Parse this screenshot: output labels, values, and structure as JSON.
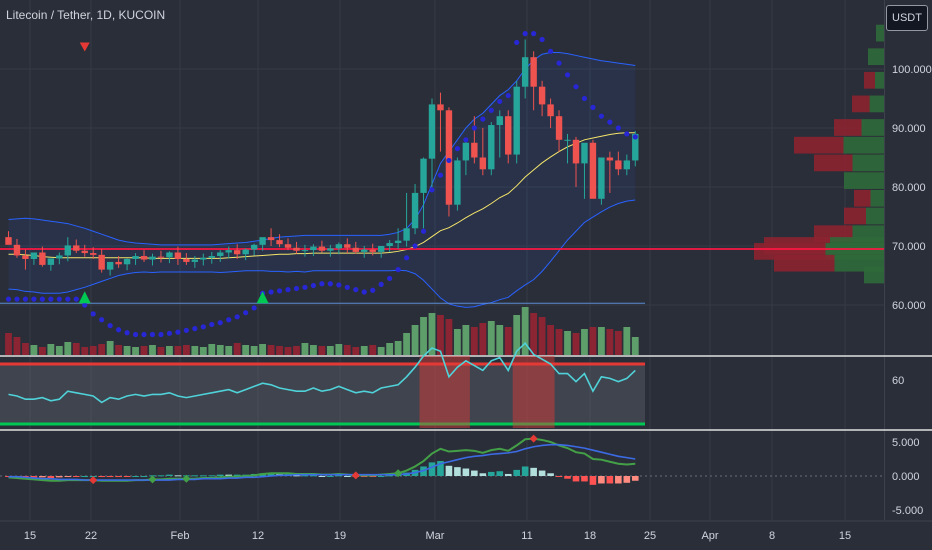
{
  "header": {
    "symbol_title": "Litecoin / Tether, 1D, KUCOIN",
    "currency_button": "USDT"
  },
  "colors": {
    "bg": "#2a2e39",
    "bull": "#26a69a",
    "bear": "#ef5350",
    "bb": "#2962ff",
    "sma": "#f5e56b",
    "psar": "#2727d6",
    "rsi": "#4fd2d8",
    "macd": "#3c6be6",
    "signal": "#e53935",
    "hist_pos": "#b2dfdb",
    "hist_neg": "#ff8a80",
    "hline_red": "#ff1744",
    "grid": "#363a45"
  },
  "chart_data": {
    "type": "candlestick",
    "price_axis": {
      "ticks": [
        60,
        70,
        80,
        90,
        100
      ],
      "tick_labels": [
        "60.000",
        "70.000",
        "80.000",
        "90.000",
        "100.000"
      ],
      "ylim": [
        52,
        108
      ]
    },
    "rsi_axis": {
      "tick_labels": [
        "60"
      ]
    },
    "macd_axis": {
      "ticks": [
        5,
        0,
        -5
      ],
      "tick_labels": [
        "5.000",
        "0.000",
        "-5.000"
      ],
      "ylim": [
        -6,
        6
      ]
    },
    "x_tick_labels": [
      "15",
      "22",
      "Feb",
      "12",
      "19",
      "Mar",
      "11",
      "18",
      "25",
      "Apr",
      "8",
      "15"
    ],
    "horizontal_level": 69.5,
    "candles": {
      "open": [
        71.5,
        70.2,
        68.4,
        67.8,
        68.9,
        66.8,
        67.9,
        68.4,
        70.1,
        69.2,
        68.8,
        68.5,
        66.0,
        67.3,
        66.9,
        67.8,
        68.3,
        67.7,
        68.2,
        68.1,
        68.9,
        67.8,
        67.3,
        67.7,
        68.0,
        68.3,
        68.9,
        69.3,
        68.6,
        69.4,
        70.2,
        71.5,
        71.0,
        70.3,
        69.7,
        69.2,
        69.3,
        69.9,
        69.2,
        69.6,
        70.3,
        69.7,
        69.0,
        69.4,
        69.0,
        70.0,
        70.5,
        70.9,
        73.0,
        79.0,
        84.8,
        94.0,
        93.0,
        77.0,
        84.5,
        87.5,
        85.0,
        83.0,
        90.5,
        92.0,
        85.5,
        97.0,
        102.0,
        97.0,
        94.0,
        92.0,
        88.0,
        88.0,
        84.0,
        87.5,
        78.0,
        85.0,
        84.5,
        83.0,
        84.5
      ],
      "high": [
        72.5,
        71.2,
        69.4,
        68.8,
        69.9,
        67.8,
        68.9,
        71.5,
        71.1,
        70.2,
        69.8,
        69.5,
        67.0,
        68.3,
        67.9,
        68.8,
        69.3,
        68.7,
        69.2,
        69.1,
        69.9,
        68.8,
        68.3,
        68.7,
        69.0,
        69.3,
        69.9,
        70.3,
        69.6,
        70.4,
        71.2,
        73.0,
        72.0,
        71.3,
        70.7,
        70.2,
        70.3,
        70.9,
        70.2,
        70.6,
        71.3,
        70.7,
        70.0,
        70.4,
        70.0,
        71.0,
        73.0,
        79.0,
        80.5,
        85.0,
        95.0,
        96.0,
        93.5,
        85.0,
        88.0,
        92.0,
        90.0,
        91.0,
        93.0,
        93.0,
        98.0,
        105.0,
        103.0,
        98.0,
        95.0,
        93.0,
        89.0,
        88.5,
        86.0,
        88.0,
        84.0,
        86.0,
        86.0,
        85.5,
        89.5
      ],
      "low": [
        70.5,
        68.0,
        66.0,
        66.8,
        66.5,
        65.8,
        66.9,
        67.4,
        68.8,
        68.2,
        67.8,
        65.5,
        65.0,
        66.3,
        65.9,
        66.8,
        67.3,
        66.7,
        67.2,
        67.1,
        66.8,
        66.8,
        66.3,
        66.7,
        67.0,
        67.3,
        67.9,
        67.8,
        67.6,
        68.4,
        69.2,
        70.0,
        69.8,
        69.3,
        68.7,
        68.2,
        68.3,
        68.9,
        68.2,
        68.6,
        68.8,
        68.7,
        68.0,
        68.4,
        68.0,
        69.0,
        69.5,
        69.9,
        72.0,
        73.0,
        80.0,
        86.0,
        75.0,
        76.0,
        82.0,
        84.0,
        82.0,
        82.0,
        85.0,
        84.0,
        84.0,
        95.0,
        93.0,
        92.0,
        90.0,
        86.0,
        84.0,
        80.0,
        78.0,
        79.0,
        77.0,
        79.0,
        82.0,
        82.0,
        83.5
      ],
      "close": [
        70.2,
        68.4,
        67.8,
        68.9,
        66.8,
        67.9,
        68.4,
        70.1,
        69.2,
        68.8,
        68.5,
        66.0,
        67.3,
        66.9,
        67.8,
        68.3,
        67.7,
        68.2,
        68.1,
        68.9,
        67.8,
        67.3,
        67.7,
        68.0,
        68.3,
        68.9,
        69.3,
        68.6,
        69.4,
        70.2,
        71.5,
        71.0,
        70.3,
        69.7,
        69.2,
        69.3,
        69.9,
        69.2,
        69.6,
        70.3,
        69.7,
        69.0,
        69.4,
        69.0,
        70.0,
        70.5,
        70.9,
        73.0,
        79.0,
        84.8,
        94.0,
        93.0,
        77.0,
        84.5,
        87.5,
        85.0,
        83.0,
        90.5,
        92.0,
        85.5,
        97.0,
        102.0,
        97.0,
        94.0,
        92.0,
        88.0,
        88.0,
        84.0,
        87.5,
        78.0,
        85.0,
        84.5,
        83.0,
        84.5,
        89.0
      ]
    },
    "volume": [
      22,
      18,
      12,
      10,
      8,
      11,
      9,
      13,
      12,
      8,
      9,
      11,
      14,
      10,
      9,
      8,
      9,
      10,
      8,
      9,
      9,
      10,
      9,
      8,
      11,
      10,
      9,
      12,
      10,
      9,
      11,
      10,
      9,
      8,
      9,
      12,
      10,
      9,
      9,
      11,
      10,
      8,
      9,
      10,
      8,
      12,
      14,
      22,
      30,
      38,
      42,
      40,
      36,
      26,
      30,
      28,
      32,
      34,
      30,
      28,
      40,
      48,
      42,
      38,
      30,
      26,
      24,
      22,
      26,
      28,
      28,
      26,
      24,
      28,
      18
    ],
    "indicators": {
      "sma": [
        68.6,
        68.6,
        68.5,
        68.4,
        68.2,
        68.1,
        68.0,
        68.0,
        68.0,
        68.0,
        68.0,
        68.0,
        68.0,
        68.0,
        68.0,
        68.0,
        68.0,
        67.9,
        67.9,
        67.9,
        67.9,
        67.9,
        67.9,
        67.9,
        67.9,
        67.9,
        68.0,
        68.1,
        68.2,
        68.3,
        68.4,
        68.5,
        68.6,
        68.6,
        68.7,
        68.7,
        68.8,
        68.8,
        68.8,
        68.8,
        68.8,
        68.8,
        68.8,
        68.8,
        68.8,
        68.9,
        69.1,
        69.4,
        69.9,
        70.6,
        71.6,
        72.6,
        73.1,
        73.9,
        74.8,
        75.6,
        76.3,
        77.2,
        78.2,
        78.9,
        80.2,
        81.7,
        82.9,
        84.1,
        85.1,
        86.0,
        86.8,
        87.4,
        88.0,
        88.3,
        88.6,
        88.9,
        89.1,
        89.2,
        89.2
      ],
      "bb_upper": [
        74.5,
        74.6,
        74.7,
        74.6,
        74.4,
        74.2,
        74.0,
        73.8,
        73.4,
        73.0,
        72.5,
        72.0,
        71.5,
        71.0,
        70.7,
        70.5,
        70.4,
        70.3,
        70.2,
        70.2,
        70.2,
        70.2,
        70.2,
        70.2,
        70.2,
        70.3,
        70.4,
        70.5,
        70.6,
        70.8,
        71.0,
        71.3,
        71.5,
        71.6,
        71.7,
        71.8,
        71.8,
        71.8,
        71.8,
        71.8,
        71.8,
        71.8,
        71.8,
        71.8,
        71.8,
        72.0,
        72.3,
        73.0,
        74.5,
        77.0,
        80.5,
        84.0,
        86.0,
        88.0,
        90.0,
        91.5,
        92.5,
        94.0,
        95.5,
        96.5,
        98.0,
        100.0,
        101.5,
        102.5,
        102.8,
        102.8,
        102.6,
        102.3,
        102.0,
        101.7,
        101.4,
        101.2,
        101.0,
        100.8,
        100.6
      ],
      "bb_lower": [
        62.7,
        62.6,
        62.3,
        62.2,
        62.0,
        62.0,
        62.0,
        62.2,
        62.6,
        63.0,
        63.5,
        64.0,
        64.5,
        65.0,
        65.3,
        65.5,
        65.6,
        65.5,
        65.6,
        65.6,
        65.6,
        65.6,
        65.6,
        65.6,
        65.6,
        65.5,
        65.6,
        65.7,
        65.8,
        65.8,
        65.8,
        65.7,
        65.7,
        65.6,
        65.7,
        65.6,
        65.8,
        65.8,
        65.8,
        65.8,
        65.8,
        65.8,
        65.8,
        65.8,
        65.8,
        65.8,
        65.9,
        65.8,
        65.3,
        64.2,
        62.7,
        61.2,
        60.2,
        59.8,
        59.6,
        59.7,
        60.1,
        60.4,
        60.9,
        61.3,
        62.4,
        63.4,
        64.3,
        65.7,
        67.4,
        69.2,
        71.0,
        72.5,
        74.0,
        74.9,
        75.8,
        76.6,
        77.2,
        77.6,
        77.8
      ],
      "psar": [
        61,
        61,
        61,
        61,
        61,
        61,
        61,
        61,
        61,
        60,
        58.5,
        57.5,
        56.5,
        55.8,
        55.3,
        55.0,
        55.0,
        55.0,
        55.0,
        55.2,
        55.4,
        55.7,
        56.0,
        56.3,
        56.7,
        57.0,
        57.5,
        58.0,
        58.7,
        59.5,
        62.0,
        62.2,
        62.4,
        62.6,
        62.8,
        63.0,
        63.3,
        63.6,
        63.6,
        63.4,
        63.0,
        62.6,
        62.2,
        62.5,
        63.5,
        64.5,
        66.0,
        68.0,
        70.0,
        72.5,
        79.5,
        82.0,
        84.5,
        86.5,
        88.0,
        90.0,
        91.5,
        93.0,
        94.5,
        95.5,
        104.5,
        106.0,
        106.0,
        105.0,
        103.0,
        101.0,
        99.0,
        97.0,
        95.0,
        93.5,
        92.0,
        91.0,
        90.0,
        89.0,
        88.5
      ],
      "rsi": [
        51,
        50,
        48,
        48,
        49,
        47,
        48,
        53,
        52,
        51,
        50,
        46,
        49,
        48,
        50,
        51,
        50,
        51,
        51,
        52,
        50,
        49,
        50,
        51,
        52,
        53,
        54,
        52,
        54,
        56,
        58,
        57,
        55,
        54,
        53,
        53,
        55,
        53,
        54,
        56,
        54,
        52,
        53,
        52,
        55,
        56,
        57,
        62,
        68,
        75,
        80,
        78,
        62,
        68,
        72,
        69,
        66,
        72,
        74,
        66,
        78,
        83,
        76,
        73,
        70,
        64,
        64,
        59,
        64,
        53,
        62,
        61,
        59,
        61,
        66
      ],
      "macd": [
        -0.2,
        -0.3,
        -0.4,
        -0.5,
        -0.6,
        -0.7,
        -0.7,
        -0.6,
        -0.6,
        -0.6,
        -0.6,
        -0.7,
        -0.7,
        -0.7,
        -0.7,
        -0.6,
        -0.6,
        -0.5,
        -0.5,
        -0.4,
        -0.4,
        -0.4,
        -0.4,
        -0.3,
        -0.3,
        -0.2,
        -0.1,
        -0.1,
        0.0,
        0.1,
        0.3,
        0.4,
        0.4,
        0.4,
        0.3,
        0.3,
        0.3,
        0.2,
        0.2,
        0.3,
        0.2,
        0.1,
        0.1,
        0.1,
        0.2,
        0.3,
        0.4,
        0.8,
        1.4,
        2.2,
        3.3,
        4.0,
        3.6,
        3.7,
        3.8,
        3.7,
        3.4,
        3.8,
        4.0,
        3.7,
        4.5,
        5.4,
        5.5,
        5.3,
        5.0,
        4.5,
        4.1,
        3.5,
        3.3,
        2.5,
        2.4,
        2.1,
        1.8,
        1.7,
        1.8
      ],
      "signal": [
        -0.1,
        -0.1,
        -0.2,
        -0.3,
        -0.4,
        -0.4,
        -0.5,
        -0.5,
        -0.5,
        -0.6,
        -0.6,
        -0.6,
        -0.6,
        -0.6,
        -0.6,
        -0.6,
        -0.6,
        -0.6,
        -0.6,
        -0.6,
        -0.5,
        -0.5,
        -0.5,
        -0.4,
        -0.4,
        -0.4,
        -0.3,
        -0.3,
        -0.2,
        -0.2,
        -0.1,
        0.0,
        0.1,
        0.1,
        0.2,
        0.2,
        0.2,
        0.2,
        0.2,
        0.2,
        0.2,
        0.2,
        0.2,
        0.2,
        0.2,
        0.2,
        0.2,
        0.3,
        0.5,
        0.8,
        1.3,
        1.8,
        2.1,
        2.4,
        2.7,
        2.9,
        3.0,
        3.2,
        3.3,
        3.4,
        3.6,
        4.0,
        4.3,
        4.5,
        4.6,
        4.6,
        4.5,
        4.3,
        4.1,
        3.8,
        3.5,
        3.2,
        2.9,
        2.7,
        2.5
      ]
    },
    "psar_flip_markers": [
      {
        "type": "bear",
        "index": 9,
        "value": 104.5
      },
      {
        "type": "bull",
        "index": 9,
        "value": 60.3
      },
      {
        "type": "bull",
        "index": 30,
        "value": 60.3
      }
    ],
    "rsi_overbought_spans": [
      [
        49,
        54
      ],
      [
        60,
        64
      ]
    ],
    "macd_cross_markers": [
      [
        10,
        "red"
      ],
      [
        17,
        "green"
      ],
      [
        21,
        "green"
      ],
      [
        41,
        "red"
      ],
      [
        46,
        "green"
      ],
      [
        62,
        "red"
      ]
    ]
  }
}
